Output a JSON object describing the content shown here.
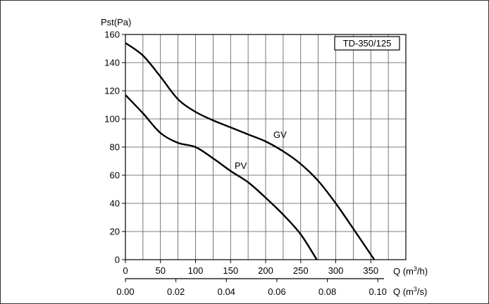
{
  "chart_data": {
    "type": "line",
    "title": "TD-350/125",
    "ylabel": "Pst(Pa)",
    "xlabel": "Q (m³/h)",
    "xlabel2": "Q (m³/s)",
    "ylim": [
      0,
      160
    ],
    "xlim": [
      0,
      400
    ],
    "yticks": [
      "0",
      "20",
      "40",
      "60",
      "80",
      "100",
      "120",
      "140",
      "160"
    ],
    "xticks": [
      "0",
      "50",
      "100",
      "150",
      "200",
      "250",
      "300",
      "350"
    ],
    "x2ticks": [
      "0.00",
      "0.02",
      "0.04",
      "0.06",
      "0.08",
      "0.10"
    ],
    "series": [
      {
        "name": "GV",
        "x": [
          0,
          25,
          50,
          75,
          100,
          125,
          150,
          175,
          200,
          225,
          250,
          275,
          300,
          325,
          355
        ],
        "y": [
          154,
          145,
          130,
          114,
          105,
          99,
          94,
          89,
          84,
          77,
          68,
          56,
          40,
          22,
          0
        ]
      },
      {
        "name": "PV",
        "x": [
          0,
          25,
          50,
          75,
          100,
          125,
          150,
          175,
          200,
          225,
          250,
          273
        ],
        "y": [
          117,
          104,
          90,
          83,
          80,
          72,
          63,
          55,
          44,
          32,
          18,
          0
        ]
      }
    ],
    "annotations": [
      "GV",
      "PV"
    ],
    "grid": true
  }
}
